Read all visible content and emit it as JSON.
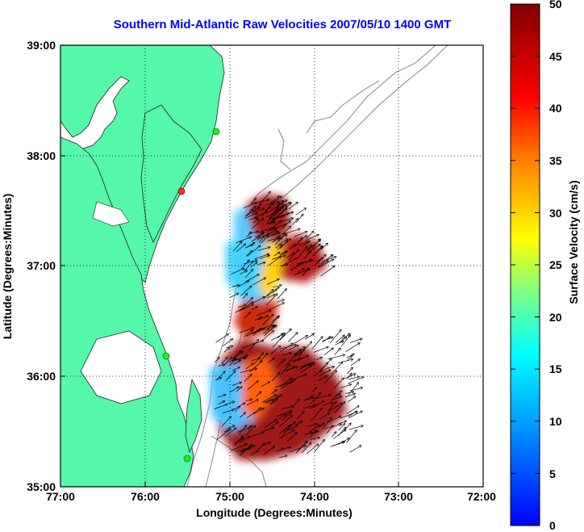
{
  "title": "Southern Mid-Atlantic Raw Velocities 2007/05/10 1400 GMT",
  "xlabel": "Longitude (Degrees:Minutes)",
  "ylabel": "Latitude (Degrees:Minutes)",
  "colorbar_label": "Surface Velocity (cm/s)",
  "x_ticks": [
    "77:00",
    "76:00",
    "75:00",
    "74:00",
    "73:00",
    "72:00"
  ],
  "y_ticks": [
    "39:00",
    "38:00",
    "37:00",
    "36:00",
    "35:00"
  ],
  "colorbar_ticks": [
    "50",
    "45",
    "40",
    "35",
    "30",
    "25",
    "20",
    "15",
    "10",
    "5",
    "0"
  ],
  "colors": {
    "land": "#55f7a9",
    "coast": "#222222",
    "bathymetry": "#9a9a9a",
    "grid": "#000000",
    "title": "#0000ff",
    "station": "#22ee22",
    "station_alt": "#ee3322"
  },
  "chart_data": {
    "type": "heatmap",
    "title": "Southern Mid-Atlantic Raw Velocities 2007/05/10 1400 GMT",
    "xlabel": "Longitude (Degrees:Minutes)",
    "ylabel": "Latitude (Degrees:Minutes)",
    "xlim": [
      -77,
      -72
    ],
    "ylim": [
      35,
      39
    ],
    "grid": true,
    "colorbar": {
      "label": "Surface Velocity (cm/s)",
      "range": [
        0,
        50
      ],
      "colormap": "jet"
    },
    "velocity_regions": [
      {
        "lon": -74.85,
        "lat": 37.45,
        "speed": 48
      },
      {
        "lon": -74.55,
        "lat": 36.95,
        "speed": 47
      },
      {
        "lon": -74.95,
        "lat": 36.95,
        "speed": 14
      },
      {
        "lon": -75.05,
        "lat": 37.25,
        "speed": 10
      },
      {
        "lon": -74.7,
        "lat": 36.9,
        "speed": 28
      },
      {
        "lon": -74.95,
        "lat": 36.45,
        "speed": 40
      },
      {
        "lon": -75.1,
        "lat": 36.2,
        "speed": 20
      },
      {
        "lon": -75.15,
        "lat": 35.85,
        "speed": 10
      },
      {
        "lon": -74.9,
        "lat": 35.8,
        "speed": 18
      },
      {
        "lon": -74.3,
        "lat": 35.85,
        "speed": 49
      },
      {
        "lon": -74.6,
        "lat": 35.6,
        "speed": 47
      },
      {
        "lon": -74.9,
        "lat": 35.4,
        "speed": 44
      }
    ],
    "stations": [
      {
        "lon": -75.15,
        "lat": 38.25,
        "color": "green"
      },
      {
        "lon": -75.55,
        "lat": 37.6,
        "color": "red"
      },
      {
        "lon": -75.73,
        "lat": 36.18,
        "color": "green"
      },
      {
        "lon": -75.5,
        "lat": 35.22,
        "color": "green"
      }
    ]
  }
}
